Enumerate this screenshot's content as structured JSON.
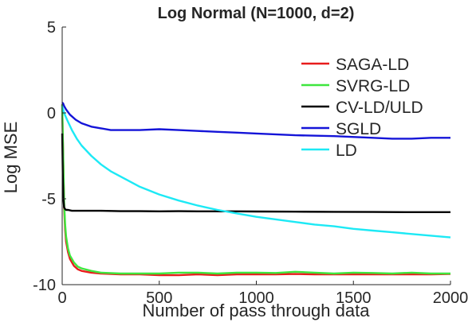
{
  "chart_data": {
    "type": "line",
    "title": "Log Normal (N=1000, d=2)",
    "xlabel": "Number of pass through data",
    "ylabel": "Log MSE",
    "xlim": [
      0,
      2000
    ],
    "ylim": [
      -10,
      5
    ],
    "xticks": [
      0,
      500,
      1000,
      1500,
      2000
    ],
    "yticks": [
      5,
      0,
      -5,
      -10
    ],
    "legend_position": "top-right",
    "series": [
      {
        "name": "SAGA-LD",
        "color": "#e81c1c",
        "x": [
          0,
          5,
          10,
          15,
          20,
          30,
          40,
          60,
          80,
          100,
          150,
          200,
          300,
          400,
          500,
          600,
          700,
          800,
          900,
          1000,
          1100,
          1200,
          1300,
          1400,
          1500,
          1600,
          1700,
          1800,
          1900,
          2000
        ],
        "y": [
          0.5,
          -2.5,
          -5.5,
          -6.8,
          -7.5,
          -8.1,
          -8.5,
          -8.9,
          -9.1,
          -9.2,
          -9.3,
          -9.35,
          -9.4,
          -9.4,
          -9.45,
          -9.45,
          -9.4,
          -9.45,
          -9.4,
          -9.4,
          -9.4,
          -9.38,
          -9.4,
          -9.4,
          -9.4,
          -9.4,
          -9.4,
          -9.4,
          -9.4,
          -9.38
        ]
      },
      {
        "name": "SVRG-LD",
        "color": "#3ee63e",
        "x": [
          0,
          5,
          10,
          15,
          20,
          30,
          40,
          60,
          80,
          100,
          150,
          200,
          300,
          400,
          500,
          600,
          700,
          800,
          900,
          1000,
          1100,
          1200,
          1300,
          1400,
          1500,
          1600,
          1700,
          1800,
          1900,
          2000
        ],
        "y": [
          0.5,
          -2.3,
          -5.2,
          -6.5,
          -7.2,
          -7.9,
          -8.3,
          -8.7,
          -8.95,
          -9.05,
          -9.2,
          -9.3,
          -9.35,
          -9.35,
          -9.35,
          -9.3,
          -9.3,
          -9.35,
          -9.3,
          -9.3,
          -9.32,
          -9.25,
          -9.3,
          -9.35,
          -9.3,
          -9.32,
          -9.35,
          -9.3,
          -9.35,
          -9.35
        ]
      },
      {
        "name": "CV-LD/ULD",
        "color": "#000000",
        "x": [
          0,
          3,
          6,
          10,
          15,
          20,
          30,
          50,
          100,
          200,
          300,
          400,
          500,
          600,
          700,
          800,
          900,
          1000,
          1200,
          1400,
          1600,
          1800,
          2000
        ],
        "y": [
          -1.2,
          -3.5,
          -5.0,
          -5.5,
          -5.6,
          -5.65,
          -5.65,
          -5.7,
          -5.7,
          -5.7,
          -5.72,
          -5.72,
          -5.73,
          -5.72,
          -5.73,
          -5.73,
          -5.73,
          -5.74,
          -5.75,
          -5.76,
          -5.77,
          -5.78,
          -5.78
        ]
      },
      {
        "name": "SGLD",
        "color": "#1414d8",
        "x": [
          0,
          5,
          10,
          20,
          40,
          70,
          100,
          150,
          200,
          250,
          300,
          400,
          500,
          600,
          700,
          800,
          900,
          1000,
          1200,
          1400,
          1600,
          1700,
          1800,
          1900,
          2000
        ],
        "y": [
          0.6,
          0.55,
          0.4,
          0.2,
          -0.1,
          -0.4,
          -0.6,
          -0.8,
          -0.9,
          -1.0,
          -1.0,
          -1.0,
          -0.95,
          -1.0,
          -1.05,
          -1.1,
          -1.15,
          -1.2,
          -1.3,
          -1.35,
          -1.45,
          -1.5,
          -1.5,
          -1.45,
          -1.45
        ]
      },
      {
        "name": "LD",
        "color": "#1de9f5",
        "x": [
          0,
          10,
          25,
          50,
          75,
          100,
          150,
          200,
          250,
          300,
          400,
          500,
          600,
          700,
          800,
          900,
          1000,
          1100,
          1200,
          1300,
          1400,
          1500,
          1600,
          1700,
          1800,
          1900,
          2000
        ],
        "y": [
          0.4,
          0.0,
          -0.4,
          -1.0,
          -1.5,
          -1.9,
          -2.5,
          -3.0,
          -3.4,
          -3.7,
          -4.3,
          -4.75,
          -5.1,
          -5.4,
          -5.65,
          -5.85,
          -6.05,
          -6.2,
          -6.35,
          -6.5,
          -6.6,
          -6.75,
          -6.85,
          -6.95,
          -7.05,
          -7.15,
          -7.25
        ]
      }
    ]
  }
}
